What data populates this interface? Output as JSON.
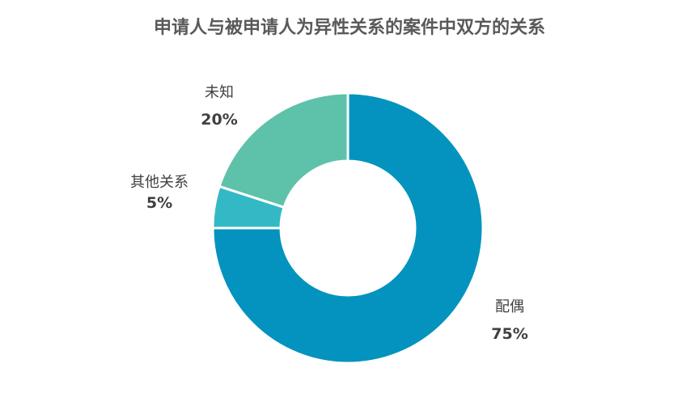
{
  "chart_data": {
    "type": "pie",
    "variant": "donut",
    "title": "申请人与被申请人为异性关系的案件中双方的关系",
    "slices": [
      {
        "name": "配偶",
        "value": 75,
        "value_label": "75%",
        "color": "#0393BE"
      },
      {
        "name": "其他关系",
        "value": 5,
        "value_label": "5%",
        "color": "#33B9C6"
      },
      {
        "name": "未知",
        "value": 20,
        "value_label": "20%",
        "color": "#5EC1AA"
      }
    ],
    "legend": "none"
  }
}
